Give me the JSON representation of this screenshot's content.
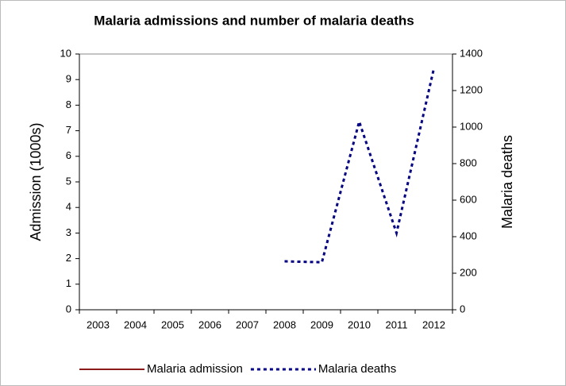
{
  "chart_data": {
    "type": "line",
    "title": "Malaria admissions and number of malaria deaths",
    "y_label": "Admission (1000s)",
    "y2_label": "Malaria deaths",
    "categories": [
      "2003",
      "2004",
      "2005",
      "2006",
      "2007",
      "2008",
      "2009",
      "2010",
      "2011",
      "2012"
    ],
    "series": [
      {
        "name": "Malaria admission",
        "color": "#8b1a1a",
        "values": [
          null,
          null,
          null,
          null,
          null,
          null,
          null,
          null,
          null,
          null
        ]
      },
      {
        "name": "Malaria deaths",
        "color": "#000080",
        "axis": "y2",
        "dashed": true,
        "values": [
          null,
          null,
          null,
          null,
          null,
          265,
          260,
          1030,
          420,
          1320
        ]
      }
    ],
    "ylim": [
      0,
      10
    ],
    "yticks": [
      0,
      1,
      2,
      3,
      4,
      5,
      6,
      7,
      8,
      9,
      10
    ],
    "y2lim": [
      0,
      1400
    ],
    "y2ticks": [
      0,
      200,
      400,
      600,
      800,
      1000,
      1200,
      1400
    ],
    "legend": "bottom"
  }
}
